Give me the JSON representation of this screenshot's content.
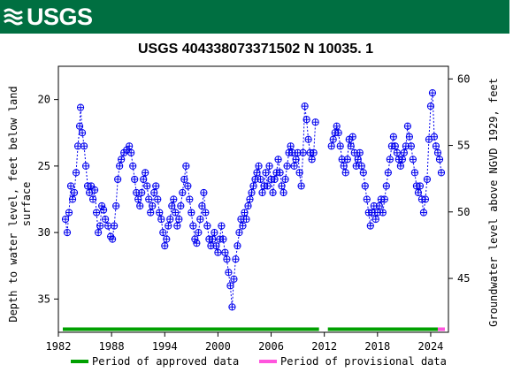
{
  "header": {
    "logo_text": "USGS",
    "logo_icon": "usgs-wave-icon"
  },
  "chart_data": {
    "type": "scatter",
    "title": "USGS 404338073371502 N 10035. 1",
    "ylabel_left_line1": "Depth to water level, feet below land",
    "ylabel_left_line2": "surface",
    "ylabel_right": "Groundwater level above NGVD 1929, feet",
    "xlim": [
      1982,
      2026
    ],
    "ylim_left": [
      37.5,
      17.5
    ],
    "ylim_right": [
      40.95,
      60.95
    ],
    "y_inverted": true,
    "x_ticks": [
      "1982",
      "1988",
      "1994",
      "2000",
      "2006",
      "2012",
      "2018",
      "2024"
    ],
    "x_tick_values": [
      1982,
      1988,
      1994,
      2000,
      2006,
      2012,
      2018,
      2024
    ],
    "y_ticks_left": [
      "20",
      "25",
      "30",
      "35"
    ],
    "y_tick_values_left": [
      20,
      25,
      30,
      35
    ],
    "y_ticks_right": [
      "45",
      "50",
      "55",
      "60"
    ],
    "y_tick_values_right": [
      45,
      50,
      55,
      60
    ],
    "grid": false,
    "series": [
      {
        "name": "Water level",
        "marker": "open-circle-plus",
        "color": "#0000ee",
        "segments": [
          [
            [
              1982.8,
              29.0
            ],
            [
              1983.0,
              30.0
            ],
            [
              1983.2,
              28.5
            ],
            [
              1983.4,
              26.5
            ],
            [
              1983.6,
              27.5
            ],
            [
              1983.8,
              27.0
            ],
            [
              1984.0,
              25.5
            ],
            [
              1984.2,
              23.5
            ],
            [
              1984.4,
              22.0
            ],
            [
              1984.5,
              20.6
            ],
            [
              1984.7,
              22.5
            ],
            [
              1984.9,
              23.5
            ],
            [
              1985.1,
              25.0
            ],
            [
              1985.3,
              26.5
            ],
            [
              1985.5,
              27.0
            ],
            [
              1985.7,
              26.5
            ],
            [
              1985.9,
              27.5
            ],
            [
              1986.1,
              26.8
            ],
            [
              1986.3,
              28.5
            ],
            [
              1986.5,
              30.0
            ],
            [
              1986.7,
              29.5
            ],
            [
              1986.9,
              28.0
            ],
            [
              1987.1,
              28.3
            ],
            [
              1987.3,
              29.0
            ],
            [
              1987.6,
              29.5
            ],
            [
              1987.9,
              30.3
            ],
            [
              1988.1,
              30.5
            ],
            [
              1988.3,
              29.5
            ],
            [
              1988.5,
              28.0
            ],
            [
              1988.7,
              26.0
            ],
            [
              1988.9,
              25.0
            ],
            [
              1989.1,
              24.5
            ],
            [
              1989.4,
              24.0
            ],
            [
              1989.7,
              23.8
            ],
            [
              1990.0,
              23.5
            ],
            [
              1990.2,
              24.0
            ],
            [
              1990.4,
              25.0
            ],
            [
              1990.6,
              26.0
            ],
            [
              1990.8,
              27.0
            ],
            [
              1991.0,
              27.5
            ],
            [
              1991.2,
              28.0
            ],
            [
              1991.4,
              27.0
            ],
            [
              1991.6,
              26.0
            ],
            [
              1991.8,
              25.5
            ],
            [
              1992.0,
              26.5
            ],
            [
              1992.2,
              27.5
            ],
            [
              1992.4,
              28.5
            ],
            [
              1992.6,
              28.0
            ],
            [
              1992.8,
              27.0
            ],
            [
              1993.0,
              26.5
            ],
            [
              1993.2,
              27.5
            ],
            [
              1993.4,
              28.5
            ],
            [
              1993.6,
              29.0
            ],
            [
              1993.8,
              30.0
            ],
            [
              1994.0,
              31.0
            ],
            [
              1994.2,
              30.5
            ],
            [
              1994.4,
              29.5
            ],
            [
              1994.6,
              29.0
            ],
            [
              1994.8,
              28.0
            ],
            [
              1995.0,
              27.5
            ],
            [
              1995.2,
              28.5
            ],
            [
              1995.4,
              29.5
            ],
            [
              1995.6,
              29.0
            ],
            [
              1995.8,
              28.0
            ],
            [
              1996.0,
              27.0
            ],
            [
              1996.2,
              26.0
            ],
            [
              1996.4,
              25.0
            ],
            [
              1996.6,
              26.5
            ],
            [
              1996.8,
              27.5
            ],
            [
              1997.0,
              28.5
            ],
            [
              1997.2,
              29.5
            ],
            [
              1997.4,
              30.5
            ],
            [
              1997.6,
              30.8
            ],
            [
              1997.8,
              30.0
            ],
            [
              1998.0,
              29.0
            ],
            [
              1998.2,
              28.0
            ],
            [
              1998.4,
              27.0
            ],
            [
              1998.6,
              28.5
            ],
            [
              1998.8,
              29.5
            ],
            [
              1999.0,
              30.5
            ],
            [
              1999.2,
              31.0
            ],
            [
              1999.4,
              30.5
            ],
            [
              1999.6,
              30.0
            ],
            [
              1999.8,
              31.0
            ],
            [
              2000.0,
              31.5
            ],
            [
              2000.2,
              30.5
            ],
            [
              2000.4,
              29.5
            ],
            [
              2000.6,
              30.5
            ],
            [
              2000.8,
              31.5
            ],
            [
              2001.0,
              32.0
            ],
            [
              2001.2,
              33.0
            ],
            [
              2001.4,
              34.0
            ],
            [
              2001.6,
              35.6
            ],
            [
              2001.8,
              33.5
            ],
            [
              2002.0,
              32.0
            ],
            [
              2002.2,
              31.0
            ],
            [
              2002.4,
              30.0
            ],
            [
              2002.6,
              29.0
            ],
            [
              2002.8,
              29.5
            ],
            [
              2003.0,
              28.5
            ],
            [
              2003.2,
              29.0
            ],
            [
              2003.4,
              28.0
            ],
            [
              2003.6,
              27.5
            ],
            [
              2003.8,
              27.0
            ],
            [
              2004.0,
              26.5
            ],
            [
              2004.2,
              26.0
            ],
            [
              2004.4,
              25.5
            ],
            [
              2004.6,
              25.0
            ],
            [
              2004.8,
              26.0
            ],
            [
              2005.0,
              27.0
            ],
            [
              2005.2,
              26.5
            ],
            [
              2005.4,
              25.5
            ],
            [
              2005.6,
              26.5
            ],
            [
              2005.8,
              25.0
            ],
            [
              2006.0,
              26.0
            ],
            [
              2006.2,
              27.0
            ],
            [
              2006.4,
              26.0
            ],
            [
              2006.6,
              25.5
            ],
            [
              2006.8,
              24.5
            ],
            [
              2007.0,
              25.5
            ],
            [
              2007.2,
              26.5
            ],
            [
              2007.4,
              27.0
            ],
            [
              2007.6,
              26.0
            ],
            [
              2007.8,
              25.0
            ],
            [
              2008.0,
              24.0
            ],
            [
              2008.2,
              23.5
            ],
            [
              2008.4,
              24.0
            ],
            [
              2008.6,
              25.0
            ],
            [
              2008.8,
              24.5
            ],
            [
              2009.0,
              24.0
            ],
            [
              2009.2,
              25.5
            ],
            [
              2009.4,
              26.5
            ],
            [
              2009.6,
              24.0
            ],
            [
              2009.8,
              20.5
            ],
            [
              2010.0,
              21.5
            ],
            [
              2010.2,
              23.0
            ],
            [
              2010.4,
              24.0
            ],
            [
              2010.6,
              24.5
            ],
            [
              2010.8,
              24.0
            ],
            [
              2011.0,
              21.7
            ]
          ],
          [
            [
              2012.8,
              23.5
            ],
            [
              2013.0,
              23.0
            ],
            [
              2013.2,
              22.5
            ],
            [
              2013.4,
              22.0
            ],
            [
              2013.6,
              22.5
            ],
            [
              2013.8,
              23.5
            ],
            [
              2014.0,
              24.5
            ],
            [
              2014.2,
              25.0
            ],
            [
              2014.4,
              25.5
            ],
            [
              2014.6,
              24.5
            ],
            [
              2014.8,
              23.0
            ],
            [
              2015.0,
              23.5
            ],
            [
              2015.2,
              22.8
            ],
            [
              2015.4,
              24.0
            ],
            [
              2015.6,
              25.0
            ],
            [
              2015.8,
              24.5
            ],
            [
              2016.0,
              24.0
            ],
            [
              2016.2,
              25.0
            ],
            [
              2016.4,
              25.5
            ],
            [
              2016.6,
              26.5
            ],
            [
              2016.8,
              27.5
            ],
            [
              2017.0,
              28.5
            ],
            [
              2017.2,
              29.5
            ],
            [
              2017.4,
              28.5
            ],
            [
              2017.6,
              28.0
            ],
            [
              2017.8,
              29.0
            ],
            [
              2018.0,
              28.5
            ],
            [
              2018.2,
              28.0
            ],
            [
              2018.4,
              27.5
            ],
            [
              2018.6,
              28.5
            ],
            [
              2018.8,
              27.5
            ],
            [
              2019.0,
              26.5
            ],
            [
              2019.2,
              25.5
            ],
            [
              2019.4,
              24.5
            ],
            [
              2019.6,
              23.5
            ],
            [
              2019.8,
              22.8
            ],
            [
              2020.0,
              23.5
            ],
            [
              2020.2,
              24.0
            ],
            [
              2020.4,
              24.5
            ],
            [
              2020.6,
              25.0
            ],
            [
              2020.8,
              24.5
            ],
            [
              2021.0,
              24.0
            ],
            [
              2021.2,
              23.5
            ],
            [
              2021.4,
              22.0
            ],
            [
              2021.6,
              22.8
            ],
            [
              2021.8,
              23.5
            ],
            [
              2022.0,
              24.5
            ],
            [
              2022.2,
              25.5
            ],
            [
              2022.4,
              26.5
            ],
            [
              2022.6,
              27.0
            ],
            [
              2022.8,
              26.5
            ],
            [
              2023.0,
              27.5
            ],
            [
              2023.2,
              28.5
            ],
            [
              2023.4,
              27.5
            ],
            [
              2023.6,
              26.0
            ],
            [
              2023.8,
              23.0
            ],
            [
              2024.0,
              20.5
            ],
            [
              2024.2,
              19.5
            ],
            [
              2024.4,
              22.8
            ],
            [
              2024.6,
              23.5
            ],
            [
              2024.8,
              24.0
            ],
            [
              2025.0,
              24.5
            ],
            [
              2025.2,
              25.5
            ]
          ]
        ]
      }
    ],
    "periods": {
      "approved_label": "Period of approved data",
      "provisional_label": "Period of provisional data",
      "approved_color": "#00a000",
      "provisional_color": "#ff55dd",
      "approved_ranges": [
        [
          1982.5,
          2011.4
        ],
        [
          2012.4,
          2024.8
        ]
      ],
      "provisional_ranges": [
        [
          2024.8,
          2025.6
        ]
      ]
    }
  }
}
